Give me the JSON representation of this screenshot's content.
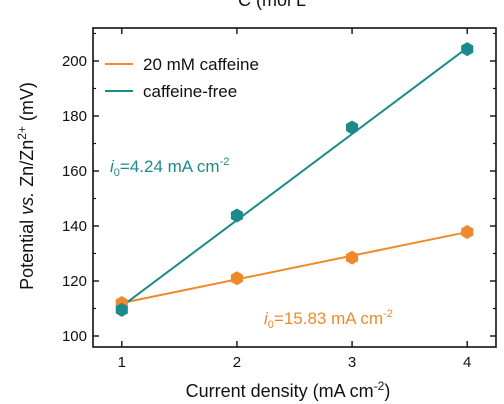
{
  "chart_data": {
    "type": "line",
    "top_cut_text": "C (mol L",
    "xlabel": "Current density (mA cm",
    "xlabel_sup": "-2",
    "xlabel_close": ")",
    "ylabel_pre": "Potential ",
    "ylabel_vs": "vs.",
    "ylabel_mid": " Zn/Zn",
    "ylabel_sup": "2+",
    "ylabel_post": " (mV)",
    "xlim": [
      0.75,
      4.25
    ],
    "ylim": [
      96,
      212
    ],
    "x_ticks": [
      1,
      2,
      3,
      4
    ],
    "y_ticks": [
      100,
      120,
      140,
      160,
      180,
      200
    ],
    "legend_position": "top-left",
    "series": [
      {
        "name": "20 mM caffeine",
        "color": "#ee8a2c",
        "marker": "hexagon",
        "x": [
          1,
          2,
          3,
          4
        ],
        "y": [
          112.0,
          121.0,
          128.5,
          137.8
        ],
        "fit": [
          [
            1,
            112.0
          ],
          [
            4,
            137.8
          ]
        ]
      },
      {
        "name": "caffeine-free",
        "color": "#1c8a8a",
        "marker": "hexagon",
        "x": [
          1,
          2,
          3,
          4
        ],
        "y": [
          109.5,
          143.8,
          175.8,
          204.3
        ],
        "fit": [
          [
            1,
            110.8
          ],
          [
            4,
            204.8
          ]
        ]
      }
    ],
    "annotations": [
      {
        "series": "caffeine-free",
        "i_sym": "i",
        "i_sub": "0",
        "text": "=4.24 mA cm",
        "sup": "-2",
        "color": "#1c8a8a"
      },
      {
        "series": "20 mM caffeine",
        "i_sym": "i",
        "i_sub": "0",
        "text": "=15.83 mA cm",
        "sup": "-2",
        "color": "#ee8a2c"
      }
    ]
  }
}
